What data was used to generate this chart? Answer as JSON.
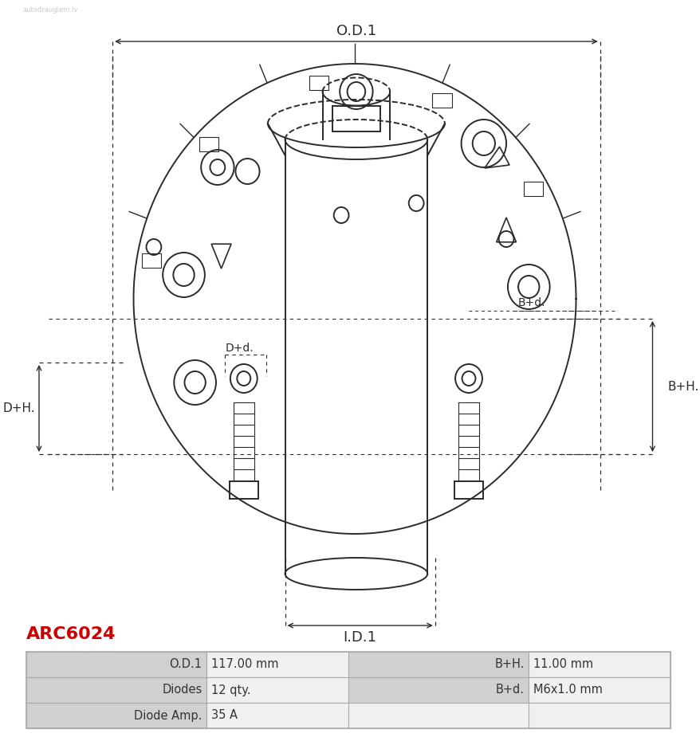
{
  "title_text": "ARC6024",
  "title_color": "#cc0000",
  "table_rows": [
    [
      "O.D.1",
      "117.00 mm",
      "B+H.",
      "11.00 mm"
    ],
    [
      "Diodes",
      "12 qty.",
      "B+d.",
      "M6x1.0 mm"
    ],
    [
      "Diode Amp.",
      "35 A",
      "",
      ""
    ]
  ],
  "dim_od1_label": "O.D.1",
  "dim_id1_label": "I.D.1",
  "dim_bh_label": "B+H.",
  "dim_bd_label": "B+d.",
  "dim_dh_label": "D+H.",
  "dim_dd_label": "D+d.",
  "bg_color": "#ffffff",
  "line_color": "#2b2b2b",
  "table_header_bg": "#d0d0d0",
  "table_cell_bg": "#f0f0f0",
  "table_border": "#aaaaaa"
}
